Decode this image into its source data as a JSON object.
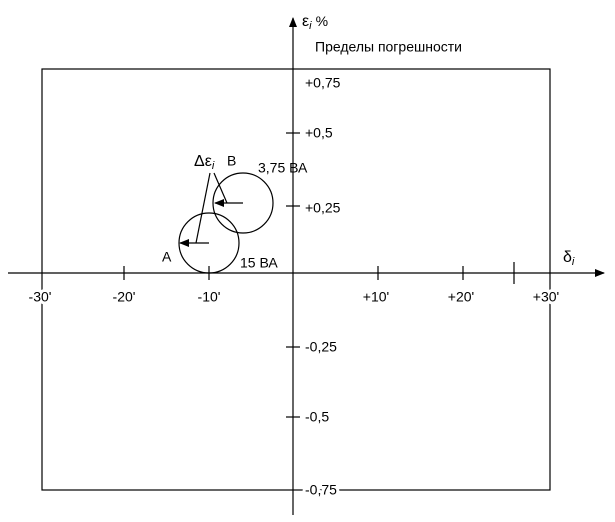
{
  "axes": {
    "y_label": {
      "symbol": "ε",
      "subscript": "i",
      "unit": "%"
    },
    "x_label": {
      "symbol": "δ",
      "subscript": "i"
    },
    "x_ticks": [
      "-30'",
      "-20'",
      "-10'",
      "+10'",
      "+20'",
      "+30'"
    ],
    "y_ticks": [
      "+0,75",
      "+0,5",
      "+0,25",
      "-0,25",
      "-0,5",
      "-0,75"
    ]
  },
  "region_label": "Пределы погрешности",
  "points": [
    {
      "label": "A",
      "burden": "15 ВА"
    },
    {
      "label": "B",
      "burden": "3,75 ВА"
    }
  ],
  "arrow_label": {
    "symbol": "Δε",
    "subscript": "i"
  }
}
